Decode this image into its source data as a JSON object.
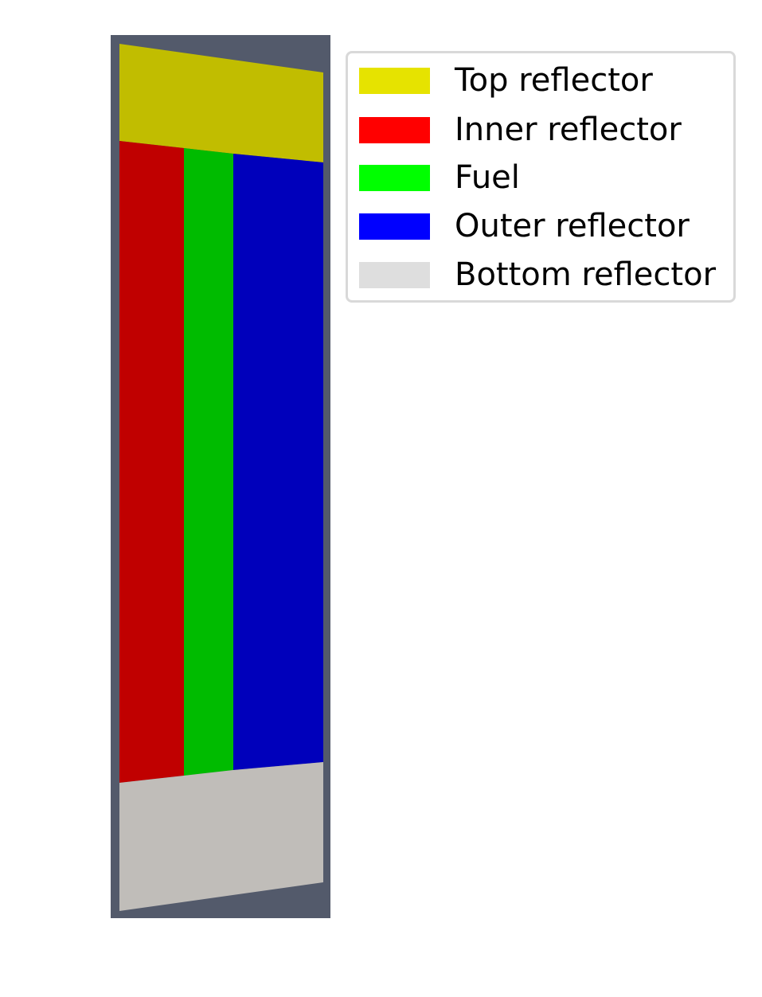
{
  "figure": {
    "background_color": "#535a6b",
    "regions": [
      {
        "key": "top",
        "render_color": "#c1bd00"
      },
      {
        "key": "inner",
        "render_color": "#c00000"
      },
      {
        "key": "fuel",
        "render_color": "#00bb00"
      },
      {
        "key": "outer",
        "render_color": "#0000bb"
      },
      {
        "key": "bottom",
        "render_color": "#c0bdb9"
      }
    ]
  },
  "legend": {
    "entries": [
      {
        "label": "Top reflector",
        "color": "#e6e300"
      },
      {
        "label": "Inner reflector",
        "color": "#ff0000"
      },
      {
        "label": "Fuel",
        "color": "#00ff00"
      },
      {
        "label": "Outer reflector",
        "color": "#0000ff"
      },
      {
        "label": "Bottom reflector",
        "color": "#dedede"
      }
    ]
  }
}
